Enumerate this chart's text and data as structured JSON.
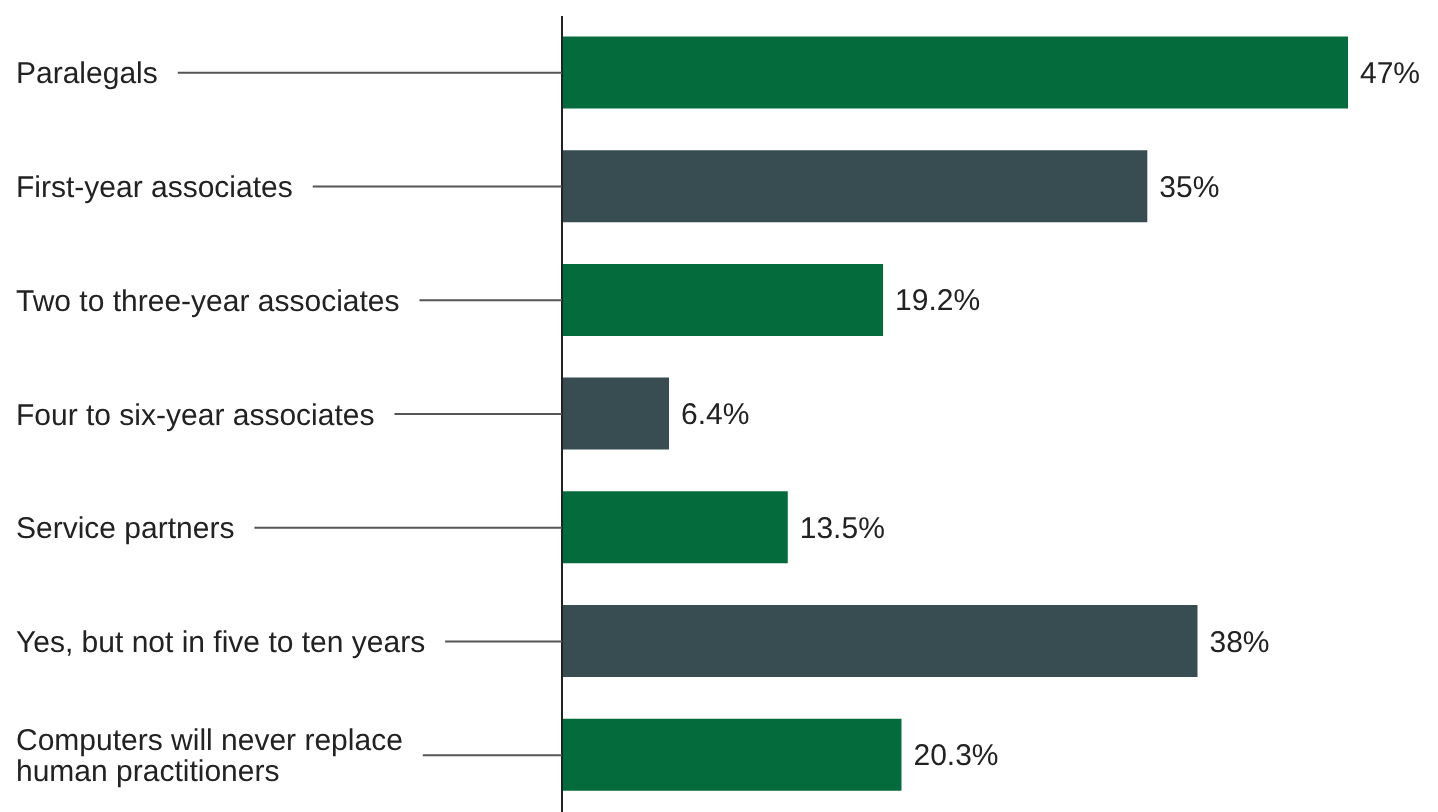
{
  "chart_data": {
    "type": "bar",
    "orientation": "horizontal",
    "categories": [
      "Paralegals",
      "First-year associates",
      "Two to three-year associates",
      "Four to six-year associates",
      "Service partners",
      "Yes, but not in five to ten years",
      "Computers will never replace human practitioners"
    ],
    "values": [
      47,
      35,
      19.2,
      6.4,
      13.5,
      38,
      20.3
    ],
    "colors": [
      "#046c3c",
      "#374d52",
      "#046c3c",
      "#374d52",
      "#046c3c",
      "#374d52",
      "#046c3c"
    ],
    "value_labels": [
      "47%",
      "35%",
      "19.2%",
      "6.4%",
      "13.5%",
      "38%",
      "20.3%"
    ]
  }
}
